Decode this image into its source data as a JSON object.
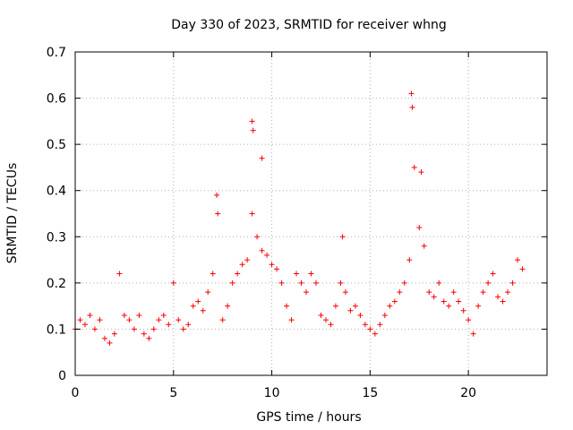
{
  "chart_data": {
    "type": "scatter",
    "title": "Day 330 of 2023, SRMTID for receiver whng",
    "xlabel": "GPS time / hours",
    "ylabel": "SRMTID / TECUs",
    "xlim": [
      0,
      24
    ],
    "ylim": [
      0,
      0.7
    ],
    "xticks": [
      0,
      5,
      10,
      15,
      20
    ],
    "xtick_labels": [
      "0",
      "5",
      "10",
      "15",
      "20"
    ],
    "yticks": [
      0,
      0.1,
      0.2,
      0.3,
      0.4,
      0.5,
      0.6,
      0.7
    ],
    "ytick_labels": [
      "0",
      "0.1",
      "0.2",
      "0.3",
      "0.4",
      "0.5",
      "0.6",
      "0.7"
    ],
    "grid": true,
    "marker": "+",
    "marker_color": "#ff0000",
    "series": [
      {
        "name": "SRMTID",
        "x": [
          0.0,
          0.25,
          0.5,
          0.75,
          1.0,
          1.25,
          1.5,
          1.75,
          2.0,
          2.25,
          2.5,
          2.75,
          3.0,
          3.25,
          3.5,
          3.75,
          4.0,
          4.25,
          4.5,
          4.75,
          5.0,
          5.25,
          5.5,
          5.75,
          6.0,
          6.25,
          6.5,
          6.75,
          7.0,
          7.25,
          7.5,
          7.75,
          8.0,
          8.25,
          8.5,
          8.75,
          9.0,
          9.25,
          9.5,
          9.75,
          10.0,
          10.25,
          10.5,
          10.75,
          11.0,
          11.25,
          11.5,
          11.75,
          12.0,
          12.25,
          12.5,
          12.75,
          13.0,
          13.25,
          13.5,
          13.75,
          14.0,
          14.25,
          14.5,
          14.75,
          15.0,
          15.25,
          15.5,
          15.75,
          16.0,
          16.25,
          16.5,
          16.75,
          17.0,
          17.25,
          17.5,
          17.75,
          18.0,
          18.25,
          18.5,
          18.75,
          19.0,
          19.25,
          19.5,
          19.75,
          20.0,
          20.25,
          20.5,
          20.75,
          21.0,
          21.25,
          21.5,
          21.75,
          22.0,
          22.25,
          22.5,
          22.75,
          9.0,
          9.05,
          17.1,
          17.15,
          17.6,
          7.2,
          9.5,
          13.6
        ],
        "y": [
          0.1,
          0.12,
          0.11,
          0.13,
          0.1,
          0.12,
          0.08,
          0.07,
          0.09,
          0.22,
          0.13,
          0.12,
          0.1,
          0.13,
          0.09,
          0.08,
          0.1,
          0.12,
          0.13,
          0.11,
          0.2,
          0.12,
          0.1,
          0.11,
          0.15,
          0.16,
          0.14,
          0.18,
          0.22,
          0.35,
          0.12,
          0.15,
          0.2,
          0.22,
          0.24,
          0.25,
          0.35,
          0.3,
          0.27,
          0.26,
          0.24,
          0.23,
          0.2,
          0.15,
          0.12,
          0.22,
          0.2,
          0.18,
          0.22,
          0.2,
          0.13,
          0.12,
          0.11,
          0.15,
          0.2,
          0.18,
          0.14,
          0.15,
          0.13,
          0.11,
          0.1,
          0.09,
          0.11,
          0.13,
          0.15,
          0.16,
          0.18,
          0.2,
          0.25,
          0.45,
          0.32,
          0.28,
          0.18,
          0.17,
          0.2,
          0.16,
          0.15,
          0.18,
          0.16,
          0.14,
          0.12,
          0.09,
          0.15,
          0.18,
          0.2,
          0.22,
          0.17,
          0.16,
          0.18,
          0.2,
          0.25,
          0.23,
          0.55,
          0.53,
          0.61,
          0.58,
          0.44,
          0.39,
          0.47,
          0.3
        ]
      }
    ]
  }
}
